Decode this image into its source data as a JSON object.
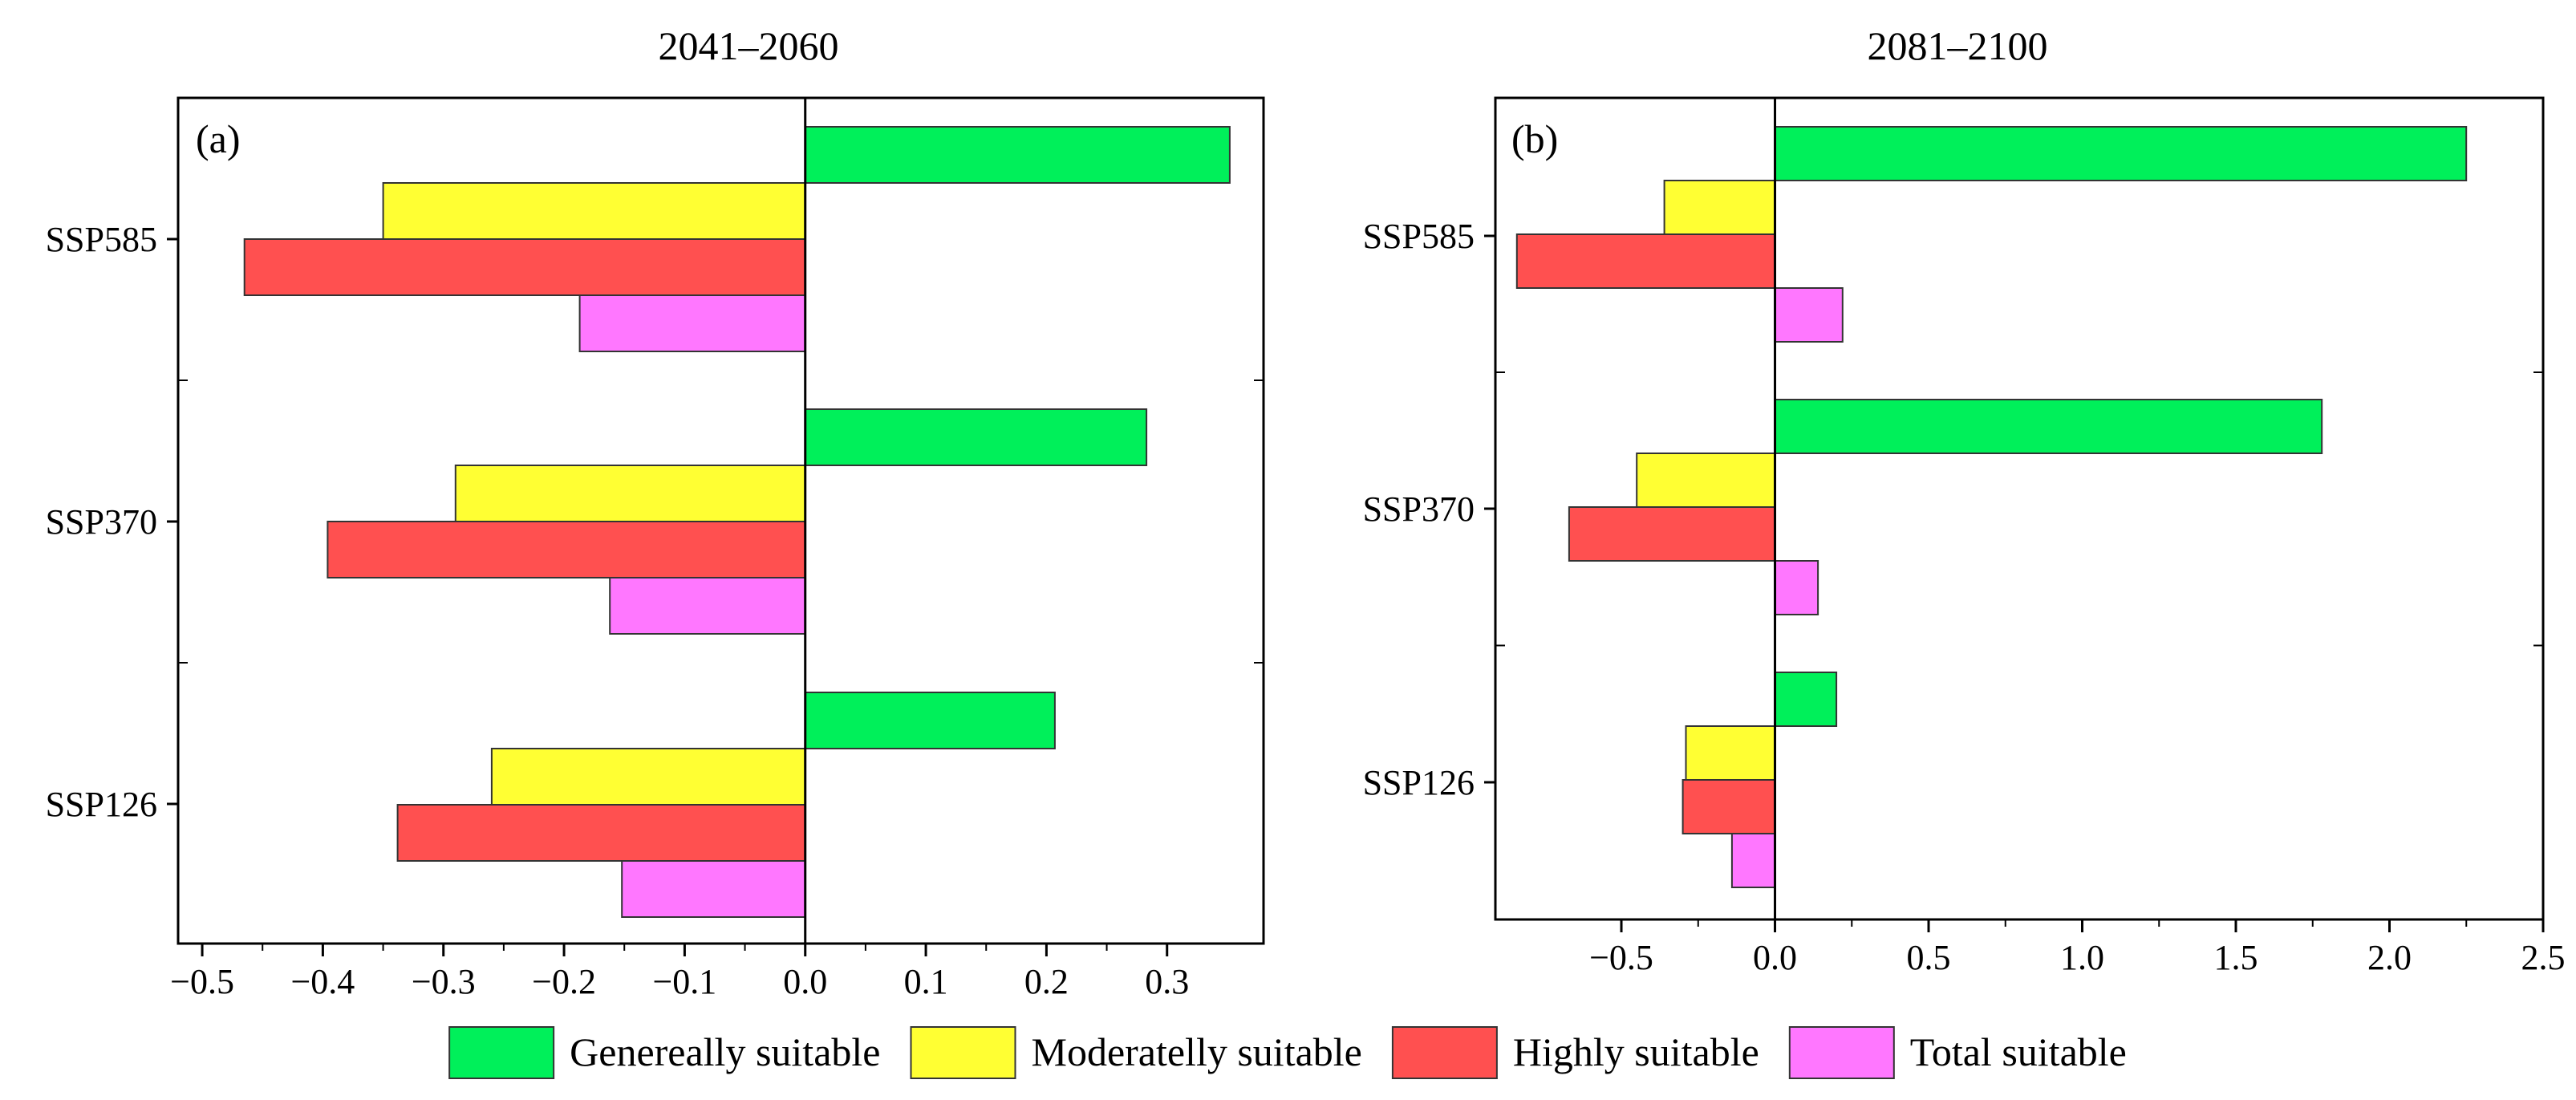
{
  "chart_data": [
    {
      "type": "bar",
      "orientation": "horizontal",
      "panel_label": "(a)",
      "title": "2041–2060",
      "categories": [
        "SSP585",
        "SSP370",
        "SSP126"
      ],
      "series": [
        {
          "name": "Genereally suitable",
          "values": [
            0.352,
            0.283,
            0.207
          ]
        },
        {
          "name": "Moderatelly suitable",
          "values": [
            -0.35,
            -0.29,
            -0.26
          ]
        },
        {
          "name": "Highly suitable",
          "values": [
            -0.465,
            -0.396,
            -0.338
          ]
        },
        {
          "name": "Total suitable",
          "values": [
            -0.187,
            -0.162,
            -0.152
          ]
        }
      ],
      "xlim": [
        -0.52,
        0.38
      ],
      "xticks": [
        -0.5,
        -0.4,
        -0.3,
        -0.2,
        -0.1,
        0.0,
        0.1,
        0.2,
        0.3
      ],
      "xtick_labels": [
        "−0.5",
        "−0.4",
        "−0.3",
        "−0.2",
        "−0.1",
        "0.0",
        "0.1",
        "0.2",
        "0.3"
      ],
      "grid": false,
      "legend": "bottom"
    },
    {
      "type": "bar",
      "orientation": "horizontal",
      "panel_label": "(b)",
      "title": "2081–2100",
      "categories": [
        "SSP585",
        "SSP370",
        "SSP126"
      ],
      "series": [
        {
          "name": "Genereally suitable",
          "values": [
            2.25,
            1.78,
            0.2
          ]
        },
        {
          "name": "Moderatelly suitable",
          "values": [
            -0.36,
            -0.45,
            -0.29
          ]
        },
        {
          "name": "Highly suitable",
          "values": [
            -0.84,
            -0.67,
            -0.3
          ]
        },
        {
          "name": "Total suitable",
          "values": [
            0.22,
            0.14,
            -0.14
          ]
        }
      ],
      "xlim": [
        -0.91,
        2.5
      ],
      "xticks": [
        -0.5,
        0.0,
        0.5,
        1.0,
        1.5,
        2.0,
        2.5
      ],
      "xtick_labels": [
        "−0.5",
        "0.0",
        "0.5",
        "1.0",
        "1.5",
        "2.0",
        "2.5"
      ],
      "grid": false,
      "legend": "bottom"
    }
  ],
  "legend": {
    "items": [
      {
        "label": "Genereally suitable",
        "color": "#00f05a"
      },
      {
        "label": "Moderatelly suitable",
        "color": "#ffff33"
      },
      {
        "label": "Highly suitable",
        "color": "#ff5050"
      },
      {
        "label": "Total suitable",
        "color": "#ff77ff"
      }
    ]
  }
}
